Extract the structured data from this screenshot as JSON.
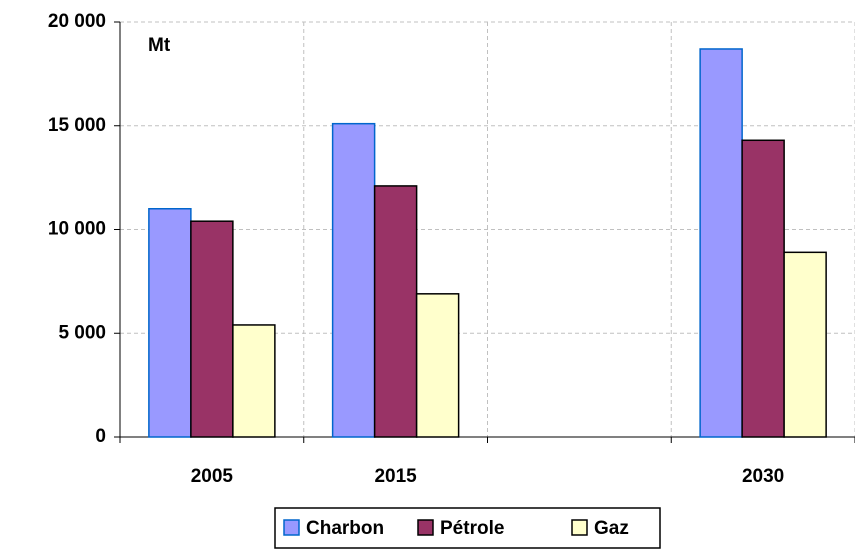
{
  "chart_data": {
    "type": "bar",
    "y_label": "Mt",
    "categories": [
      "2005",
      "2015",
      null,
      "2030"
    ],
    "series": [
      {
        "name": "Charbon",
        "color": "#9999ff",
        "values": [
          11000,
          15100,
          null,
          18700
        ]
      },
      {
        "name": "Pétrole",
        "color": "#993366",
        "values": [
          10400,
          12100,
          null,
          14300
        ]
      },
      {
        "name": "Gaz",
        "color": "#ffffcc",
        "values": [
          5400,
          6900,
          null,
          8900
        ]
      }
    ],
    "ylim": [
      0,
      20000
    ],
    "yticks": [
      0,
      {
        "value": 5000,
        "label": "5 000"
      },
      {
        "value": 10000,
        "label": "10 000"
      },
      {
        "value": 15000,
        "label": "15 000"
      },
      {
        "value": 20000,
        "label": "20 000"
      }
    ],
    "grid": true,
    "legend": "bottom"
  }
}
